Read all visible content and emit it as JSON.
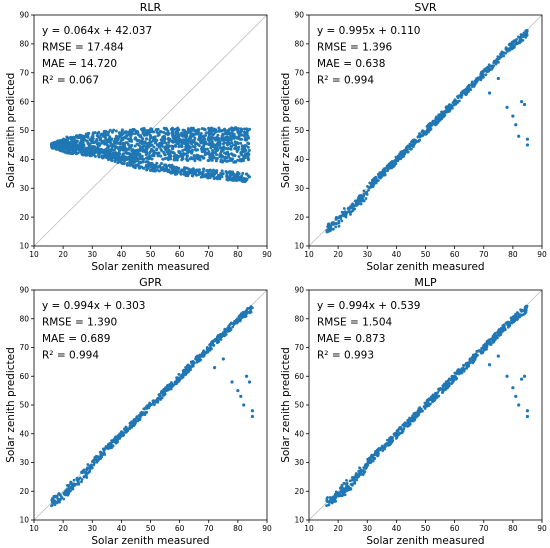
{
  "figure": {
    "ylabel": "Solar zenith predicted",
    "xlabel": "Solar zenith measured"
  },
  "chart_data": [
    {
      "type": "scatter",
      "title": "RLR",
      "xlabel": "Solar zenith measured",
      "ylabel": "Solar zenith predicted",
      "xlim": [
        10,
        90
      ],
      "ylim": [
        10,
        90
      ],
      "xticks": [
        10,
        20,
        30,
        40,
        50,
        60,
        70,
        80,
        90
      ],
      "yticks": [
        10,
        20,
        30,
        40,
        50,
        60,
        70,
        80,
        90
      ],
      "reference_line": "y = x",
      "point_color": "#1f77b4",
      "fit": {
        "slope": 0.064,
        "intercept": 42.037,
        "RMSE": 17.484,
        "MAE": 14.72,
        "R2": 0.067
      },
      "stats": [
        "y = 0.064x + 42.037",
        "RMSE = 17.484",
        "MAE = 14.720",
        "R² = 0.067"
      ],
      "series": [
        {
          "x": [
            16,
            20,
            25,
            30,
            35,
            40,
            45,
            50,
            55,
            60,
            65,
            70,
            75,
            80,
            84
          ],
          "y": [
            45.5,
            47.5,
            48.5,
            49.5,
            50,
            50.5,
            50.5,
            51,
            51,
            51,
            51,
            51,
            51,
            51,
            50.5
          ]
        },
        {
          "x": [
            16,
            20,
            25,
            30,
            35,
            40,
            45,
            50,
            55,
            60,
            65,
            70,
            75,
            80,
            84
          ],
          "y": [
            44,
            42.5,
            41.5,
            41,
            40.5,
            40,
            40,
            40,
            40,
            39.5,
            39.5,
            39.5,
            39,
            39,
            39.5
          ]
        },
        {
          "x": [
            20,
            25,
            30,
            35,
            40,
            45,
            50,
            55,
            60,
            65,
            70,
            75,
            80,
            84
          ],
          "y": [
            45.5,
            44.5,
            43,
            41.5,
            40,
            38.5,
            37.5,
            37,
            36,
            35.5,
            35,
            34.5,
            34,
            33.5
          ]
        }
      ]
    },
    {
      "type": "scatter",
      "title": "SVR",
      "xlabel": "Solar zenith measured",
      "ylabel": "Solar zenith predicted",
      "xlim": [
        10,
        90
      ],
      "ylim": [
        10,
        90
      ],
      "xticks": [
        10,
        20,
        30,
        40,
        50,
        60,
        70,
        80,
        90
      ],
      "yticks": [
        10,
        20,
        30,
        40,
        50,
        60,
        70,
        80,
        90
      ],
      "reference_line": "y = x",
      "point_color": "#1f77b4",
      "fit": {
        "slope": 0.995,
        "intercept": 0.11,
        "RMSE": 1.396,
        "MAE": 0.638,
        "R2": 0.994
      },
      "stats": [
        "y = 0.995x + 0.110",
        "RMSE = 1.396",
        "MAE = 0.638",
        "R² = 0.994"
      ],
      "series": [
        {
          "x": [
            16,
            20,
            30,
            40,
            50,
            60,
            70,
            80,
            85
          ],
          "y": [
            17,
            20,
            30,
            40,
            50,
            60,
            70,
            80,
            84
          ]
        },
        {
          "x": [
            72,
            75,
            78,
            80,
            81,
            82,
            83,
            84,
            85,
            85
          ],
          "y": [
            63,
            68,
            58,
            55,
            52,
            48,
            60,
            59,
            45,
            47
          ]
        }
      ]
    },
    {
      "type": "scatter",
      "title": "GPR",
      "xlabel": "Solar zenith measured",
      "ylabel": "Solar zenith predicted",
      "xlim": [
        10,
        90
      ],
      "ylim": [
        10,
        90
      ],
      "xticks": [
        10,
        20,
        30,
        40,
        50,
        60,
        70,
        80,
        90
      ],
      "yticks": [
        10,
        20,
        30,
        40,
        50,
        60,
        70,
        80,
        90
      ],
      "reference_line": "y = x",
      "point_color": "#1f77b4",
      "fit": {
        "slope": 0.994,
        "intercept": 0.303,
        "RMSE": 1.39,
        "MAE": 0.689,
        "R2": 0.994
      },
      "stats": [
        "y = 0.994x + 0.303",
        "RMSE = 1.390",
        "MAE = 0.689",
        "R² = 0.994"
      ],
      "series": [
        {
          "x": [
            16,
            20,
            30,
            40,
            50,
            60,
            70,
            80,
            85
          ],
          "y": [
            17,
            20,
            30,
            40,
            50,
            60,
            70,
            80,
            84
          ]
        },
        {
          "x": [
            72,
            75,
            78,
            80,
            81,
            82,
            83,
            84,
            85,
            85
          ],
          "y": [
            63,
            66,
            58,
            55,
            53,
            50,
            60,
            58,
            48,
            46
          ]
        }
      ]
    },
    {
      "type": "scatter",
      "title": "MLP",
      "xlabel": "Solar zenith measured",
      "ylabel": "Solar zenith predicted",
      "xlim": [
        10,
        90
      ],
      "ylim": [
        10,
        90
      ],
      "xticks": [
        10,
        20,
        30,
        40,
        50,
        60,
        70,
        80,
        90
      ],
      "yticks": [
        10,
        20,
        30,
        40,
        50,
        60,
        70,
        80,
        90
      ],
      "reference_line": "y = x",
      "point_color": "#1f77b4",
      "fit": {
        "slope": 0.994,
        "intercept": 0.539,
        "RMSE": 1.504,
        "MAE": 0.873,
        "R2": 0.993
      },
      "stats": [
        "y = 0.994x + 0.539",
        "RMSE = 1.504",
        "MAE = 0.873",
        "R² = 0.993"
      ],
      "series": [
        {
          "x": [
            16,
            20,
            30,
            40,
            50,
            60,
            70,
            80,
            85
          ],
          "y": [
            17,
            20,
            30,
            40,
            50,
            60,
            70,
            80,
            84
          ]
        },
        {
          "x": [
            72,
            75,
            78,
            80,
            81,
            82,
            83,
            84,
            85,
            85
          ],
          "y": [
            64,
            67,
            60,
            56,
            53,
            50,
            59,
            60,
            48,
            46
          ]
        }
      ]
    }
  ]
}
